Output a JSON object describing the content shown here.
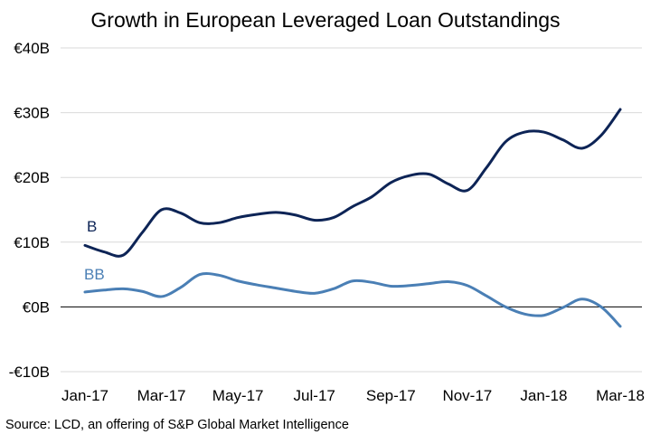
{
  "chart_data": {
    "type": "line",
    "title": "Growth in European Leveraged Loan Outstandings",
    "xlabel": "",
    "ylabel": "",
    "x_tick_labels": [
      "Jan-17",
      "Mar-17",
      "May-17",
      "Jul-17",
      "Sep-17",
      "Nov-17",
      "Jan-18",
      "Mar-18"
    ],
    "y_tick_labels": [
      "€40B",
      "€30B",
      "€20B",
      "€10B",
      "€0B",
      "-€10B"
    ],
    "y_ticks": [
      40,
      30,
      20,
      10,
      0,
      -10
    ],
    "ylim": [
      -10,
      40
    ],
    "x_unit": "month index (0 = Jan-17)",
    "xlim": [
      0,
      14
    ],
    "grid": true,
    "legend": "inline labels",
    "series": [
      {
        "name": "B",
        "color": "#0d2456",
        "x": [
          0,
          0.5,
          1,
          1.5,
          2,
          2.5,
          3,
          3.5,
          4,
          4.5,
          5,
          5.5,
          6,
          6.5,
          7,
          7.5,
          8,
          8.5,
          9,
          9.5,
          10,
          10.5,
          11,
          11.5,
          12,
          12.5,
          13,
          13.5,
          14
        ],
        "y": [
          9.5,
          8.5,
          8.0,
          11.5,
          15.0,
          14.5,
          13.0,
          13.0,
          13.8,
          14.3,
          14.6,
          14.2,
          13.4,
          13.8,
          15.5,
          17.0,
          19.2,
          20.3,
          20.5,
          19.0,
          18.0,
          21.5,
          25.5,
          27.0,
          27.0,
          25.8,
          24.5,
          26.5,
          30.5
        ]
      },
      {
        "name": "BB",
        "color": "#4a7fb5",
        "x": [
          0,
          0.5,
          1,
          1.5,
          2,
          2.5,
          3,
          3.5,
          4,
          4.5,
          5,
          5.5,
          6,
          6.5,
          7,
          7.5,
          8,
          8.5,
          9,
          9.5,
          10,
          10.5,
          11,
          11.5,
          12,
          12.5,
          13,
          13.5,
          14
        ],
        "y": [
          2.3,
          2.6,
          2.8,
          2.4,
          1.6,
          3.0,
          5.0,
          4.9,
          4.0,
          3.4,
          2.9,
          2.4,
          2.1,
          2.8,
          4.0,
          3.8,
          3.2,
          3.3,
          3.6,
          3.9,
          3.3,
          1.7,
          0.0,
          -1.1,
          -1.3,
          -0.1,
          1.2,
          0.0,
          -3.0
        ]
      }
    ]
  },
  "source": "Source:  LCD, an offering  of S&P Global Market Intelligence"
}
